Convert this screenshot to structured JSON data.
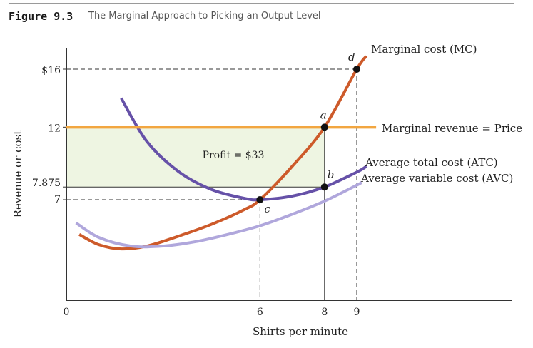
{
  "figure": {
    "label": "Figure 9.3",
    "title": "The Marginal Approach to Picking an Output Level"
  },
  "chart_data": {
    "type": "line",
    "xlabel": "Shirts per minute",
    "ylabel": "Revenue or cost",
    "x_ticks": [
      "0",
      "6",
      "8",
      "9"
    ],
    "y_ticks": [
      "$16",
      "12",
      "7.875",
      "7"
    ],
    "series": [
      {
        "name": "Marginal cost (MC)",
        "color": "#cd5a2a",
        "points": [
          [
            0.4,
            4.6
          ],
          [
            1,
            3.9
          ],
          [
            1.7,
            3.6
          ],
          [
            2.5,
            3.8
          ],
          [
            3.5,
            4.5
          ],
          [
            4.5,
            5.3
          ],
          [
            5.5,
            6.3
          ],
          [
            6,
            7
          ],
          [
            7,
            9.3
          ],
          [
            8,
            12
          ],
          [
            9,
            16
          ],
          [
            9.3,
            16.9
          ]
        ]
      },
      {
        "name": "Average total cost (ATC)",
        "color": "#6651a8",
        "points": [
          [
            1.7,
            14
          ],
          [
            2.5,
            11
          ],
          [
            3.5,
            8.9
          ],
          [
            4.5,
            7.7
          ],
          [
            5.5,
            7.1
          ],
          [
            6,
            7
          ],
          [
            7,
            7.25
          ],
          [
            8,
            7.875
          ],
          [
            9,
            8.9
          ],
          [
            9.3,
            9.3
          ]
        ]
      },
      {
        "name": "Average variable cost (AVC)",
        "color": "#b0a7dc",
        "points": [
          [
            0.3,
            5.4
          ],
          [
            1,
            4.4
          ],
          [
            2,
            3.8
          ],
          [
            3,
            3.8
          ],
          [
            4,
            4.1
          ],
          [
            5,
            4.6
          ],
          [
            6,
            5.2
          ],
          [
            7,
            6
          ],
          [
            8,
            6.9
          ],
          [
            9,
            8
          ],
          [
            9.15,
            8.2
          ]
        ]
      },
      {
        "name": "Marginal revenue = Price",
        "color": "#f2a640",
        "points": [
          [
            0,
            12
          ],
          [
            9.6,
            12
          ]
        ]
      }
    ],
    "points": [
      {
        "label": "a",
        "x": 8,
        "y": 12
      },
      {
        "label": "b",
        "x": 8,
        "y": 7.875
      },
      {
        "label": "c",
        "x": 6,
        "y": 7
      },
      {
        "label": "d",
        "x": 9,
        "y": 16
      }
    ],
    "annotations": [
      {
        "text": "Profit = $33"
      }
    ],
    "shaded_region": {
      "x": [
        0,
        8
      ],
      "y": [
        7.875,
        12
      ],
      "color": "#eef5e2"
    },
    "guides": [
      {
        "x": 9,
        "y": 16
      },
      {
        "x": 8,
        "y": 12
      },
      {
        "x": 8,
        "y": 7.875
      },
      {
        "x": 6,
        "y": 7
      }
    ]
  }
}
